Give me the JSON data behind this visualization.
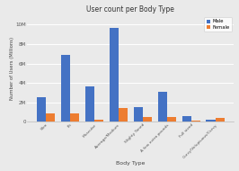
{
  "title": "User count per Body Type",
  "xlabel": "Body Type",
  "ylabel": "Number of Users (Millions)",
  "categories": [
    "Slim",
    "Fit",
    "Muscular",
    "Average/Medium",
    "Slighty Toned",
    "A few extra pounds",
    "Full sized",
    "Curvy/Voluptuous/Curvy"
  ],
  "male_values": [
    2500000,
    6900000,
    3600000,
    9700000,
    1500000,
    3100000,
    600000,
    200000
  ],
  "female_values": [
    900000,
    900000,
    200000,
    1400000,
    500000,
    500000,
    150000,
    350000
  ],
  "male_color": "#4472C4",
  "female_color": "#ED7D31",
  "bg_color": "#EAEAEA",
  "plot_bg_color": "#EAEAEA",
  "grid_color": "#FFFFFF",
  "ylim": [
    0,
    11000000
  ],
  "yticks": [
    0,
    2000000,
    4000000,
    6000000,
    8000000,
    10000000
  ],
  "ytick_labels": [
    "0",
    "2M",
    "4M",
    "6M",
    "8M",
    "10M"
  ],
  "legend_labels": [
    "Male",
    "Female"
  ],
  "bar_width": 0.38
}
